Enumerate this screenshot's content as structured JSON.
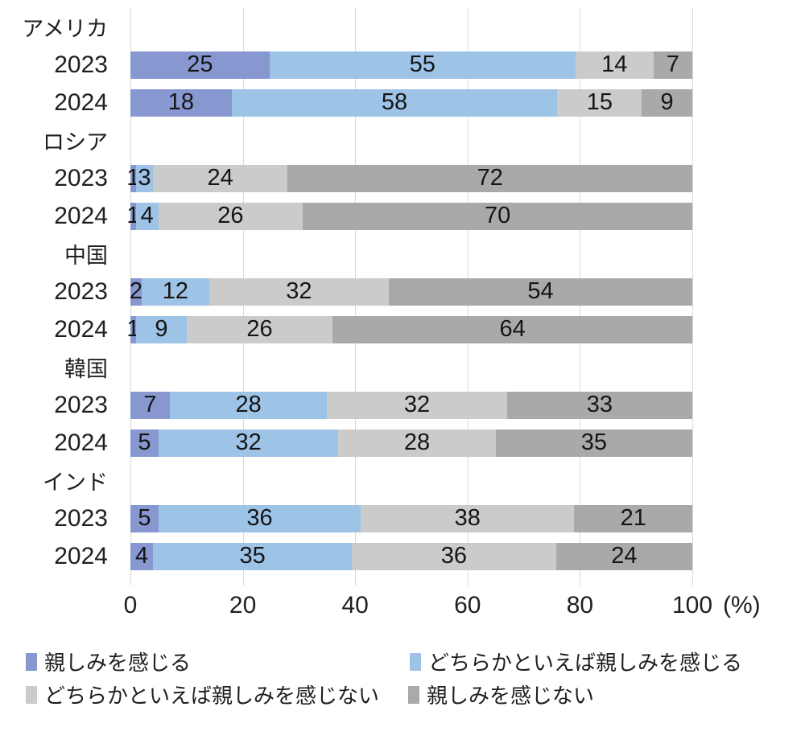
{
  "chart_data": {
    "type": "bar",
    "subtype": "horizontal-stacked-100",
    "title": "",
    "unit_label": "(%)",
    "x_axis": {
      "ticks": [
        "0",
        "20",
        "40",
        "60",
        "80",
        "100"
      ],
      "min": 0,
      "max": 100,
      "grid": true
    },
    "series": [
      {
        "name": "親しみを感じる",
        "color": "#8798d0"
      },
      {
        "name": "どちらかといえば親しみを感じる",
        "color": "#9dc3e6"
      },
      {
        "name": "どちらかといえば親しみを感じない",
        "color": "#cbcbcb"
      },
      {
        "name": "親しみを感じない",
        "color": "#aba8a8"
      }
    ],
    "groups": [
      {
        "country": "アメリカ",
        "rows": [
          {
            "year": "2023",
            "values": [
              25,
              55,
              14,
              7
            ]
          },
          {
            "year": "2024",
            "values": [
              18,
              58,
              15,
              9
            ]
          }
        ]
      },
      {
        "country": "ロシア",
        "rows": [
          {
            "year": "2023",
            "values": [
              1,
              3,
              24,
              72
            ]
          },
          {
            "year": "2024",
            "values": [
              1,
              4,
              26,
              70
            ]
          }
        ]
      },
      {
        "country": "中国",
        "rows": [
          {
            "year": "2023",
            "values": [
              2,
              12,
              32,
              54
            ]
          },
          {
            "year": "2024",
            "values": [
              1,
              9,
              26,
              64
            ]
          }
        ]
      },
      {
        "country": "韓国",
        "rows": [
          {
            "year": "2023",
            "values": [
              7,
              28,
              32,
              33
            ]
          },
          {
            "year": "2024",
            "values": [
              5,
              32,
              28,
              35
            ]
          }
        ]
      },
      {
        "country": "インド",
        "rows": [
          {
            "year": "2023",
            "values": [
              5,
              36,
              38,
              21
            ]
          },
          {
            "year": "2024",
            "values": [
              4,
              35,
              36,
              24
            ]
          }
        ]
      }
    ],
    "legend": {
      "position": "bottom",
      "entries": [
        {
          "label": "親しみを感じる",
          "color": "#8798d0"
        },
        {
          "label": "どちらかといえば親しみを感じる",
          "color": "#9dc3e6"
        },
        {
          "label": "どちらかといえば親しみを感じない",
          "color": "#cbcbcb"
        },
        {
          "label": "親しみを感じない",
          "color": "#aba8a8"
        }
      ]
    }
  }
}
